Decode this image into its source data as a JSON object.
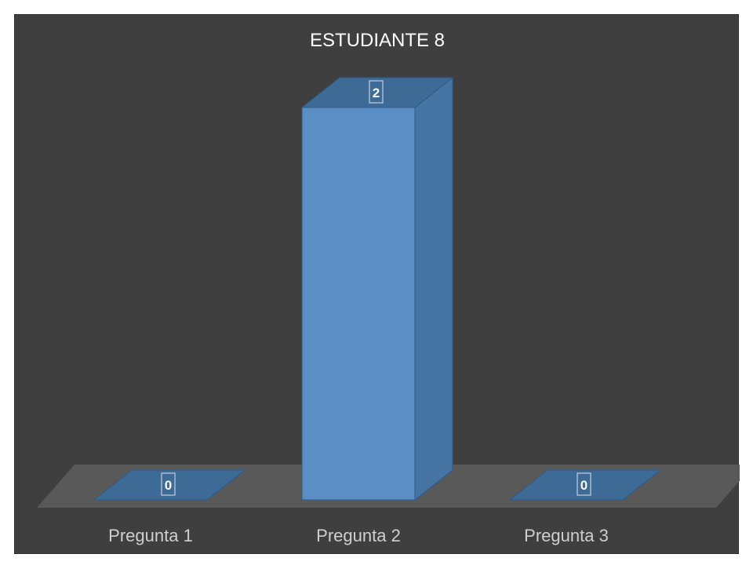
{
  "chart_data": {
    "type": "bar",
    "title": "ESTUDIANTE 8",
    "categories": [
      "Pregunta 1",
      "Pregunta 2",
      "Pregunta 3"
    ],
    "values": [
      0,
      2,
      0
    ],
    "ylim": [
      0,
      2
    ],
    "grid": false,
    "legend": "none",
    "style": "3d-column",
    "colors": {
      "background": "#3f3f3f",
      "floor": "#595959",
      "bar_front": "#5b8ec5",
      "bar_side": "#4775a3",
      "bar_top": "#3e6a96",
      "bar_stroke": "#2c5a8a"
    }
  }
}
